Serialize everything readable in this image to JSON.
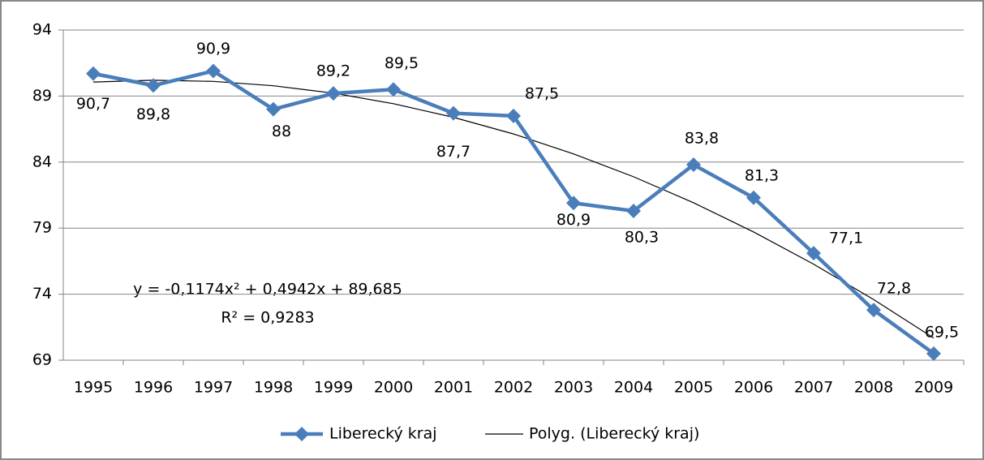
{
  "chart_data": {
    "type": "line",
    "categories": [
      "1995",
      "1996",
      "1997",
      "1998",
      "1999",
      "2000",
      "2001",
      "2002",
      "2003",
      "2004",
      "2005",
      "2006",
      "2007",
      "2008",
      "2009"
    ],
    "series": [
      {
        "name": "Liberecký kraj",
        "color": "#4a7ebb",
        "values": [
          90.7,
          89.8,
          90.9,
          88,
          89.2,
          89.5,
          87.7,
          87.5,
          80.9,
          80.3,
          83.8,
          81.3,
          77.1,
          72.8,
          69.5
        ],
        "value_labels": [
          "90,7",
          "89,8",
          "90,9",
          "88",
          "89,2",
          "89,5",
          "87,7",
          "87,5",
          "80,9",
          "80,3",
          "83,8",
          "81,3",
          "77,1",
          "72,8",
          "69,5"
        ]
      },
      {
        "name": "Polyg. (Liberecký kraj)",
        "color": "#000000",
        "values": [
          90.06,
          90.2,
          90.11,
          89.78,
          89.22,
          88.42,
          87.39,
          86.13,
          84.62,
          82.89,
          80.92,
          78.71,
          76.27,
          73.59,
          70.68
        ]
      }
    ],
    "annotations": [
      "y = -0,1174x² + 0,4942x + 89,685",
      "R² = 0,9283"
    ],
    "ylim": [
      69,
      94
    ],
    "yticks": [
      69,
      74,
      79,
      84,
      89,
      94
    ],
    "grid": true,
    "legend": "bottom"
  }
}
